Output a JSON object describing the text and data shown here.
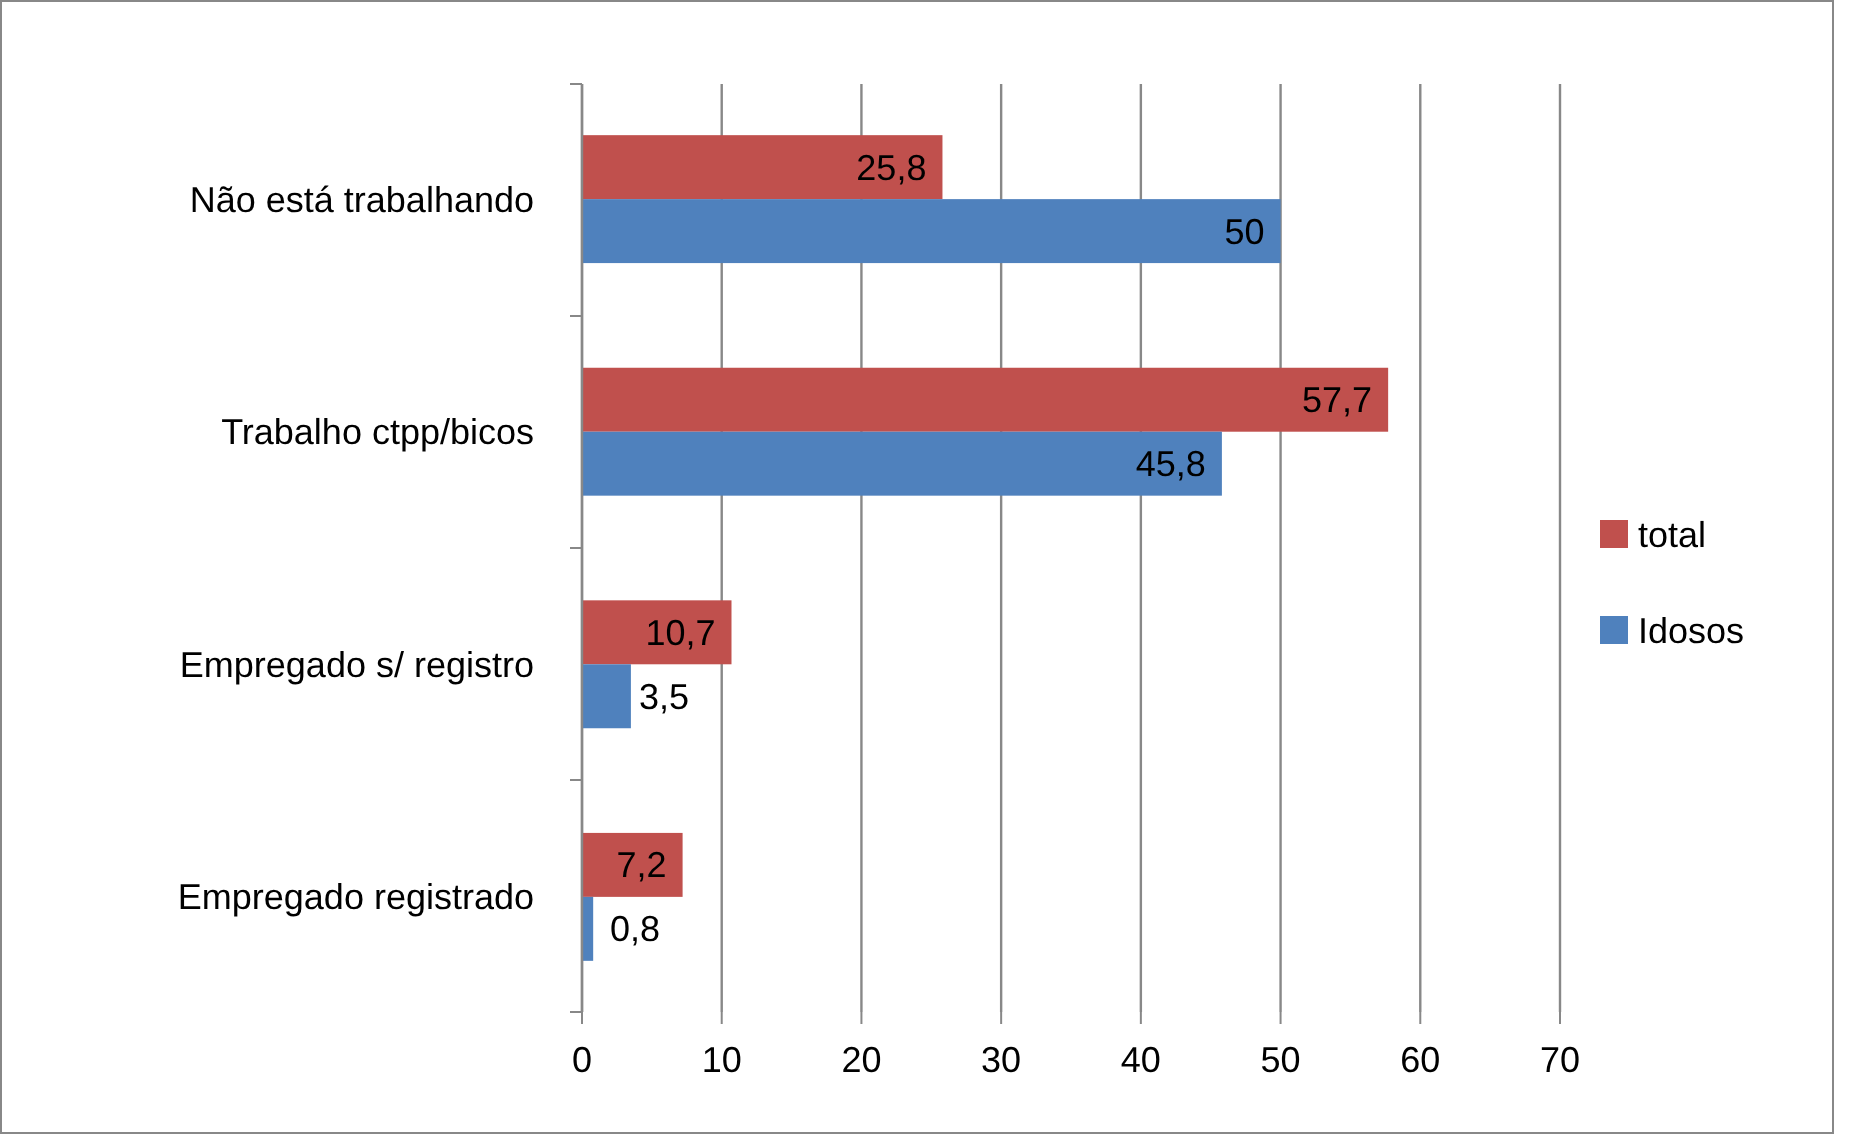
{
  "chart_data": {
    "type": "bar",
    "orientation": "horizontal",
    "categories": [
      "Não está trabalhando",
      "Trabalho ctpp/bicos",
      "Empregado s/ registro",
      "Empregado registrado"
    ],
    "series": [
      {
        "name": "total",
        "color": "#c0504d",
        "values": [
          25.8,
          57.7,
          10.7,
          7.2
        ],
        "value_labels": [
          "25,8",
          "57,7",
          "10,7",
          "7,2"
        ]
      },
      {
        "name": "Idosos",
        "color": "#4f81bd",
        "values": [
          50,
          45.8,
          3.5,
          0.8
        ],
        "value_labels": [
          "50",
          "45,8",
          "3,5",
          "0,8"
        ]
      }
    ],
    "xlim": [
      0,
      70
    ],
    "xticks": [
      0,
      10,
      20,
      30,
      40,
      50,
      60,
      70
    ],
    "grid": "x",
    "legend": "right"
  }
}
